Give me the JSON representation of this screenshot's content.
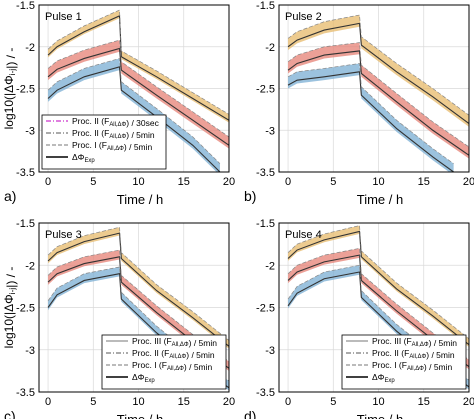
{
  "chart_data": [
    {
      "type": "line",
      "panel_letter": "a)",
      "inset_title": "Pulse 1",
      "xlabel": "Time / h",
      "ylabel": "log10(|ΔΦ_(i-j)|) / -",
      "xlim": [
        -1,
        20
      ],
      "ylim": [
        -3.5,
        -1.5
      ],
      "xticks": [
        "0",
        "5",
        "10",
        "15",
        "20"
      ],
      "yticks": [
        "-1.5",
        "-2",
        "-2.5",
        "-3",
        "-3.5"
      ],
      "grid": true,
      "legend_position": "bottom-left",
      "legend": [
        {
          "text": "Proc. II (F_All,ΔΦ) / 30sec",
          "style": "magenta-dashdot"
        },
        {
          "text": "Proc. II (F_All,ΔΦ) / 5min",
          "style": "gray-dashdot"
        },
        {
          "text": "Proc. I (F_All,ΔΦ) / 5min",
          "style": "gray-dashed"
        },
        {
          "text": "ΔΦ_Exp",
          "style": "black-solid"
        }
      ],
      "series": [
        {
          "values": [
            [
              0,
              -2.1
            ],
            [
              1,
              -2.0
            ],
            [
              4,
              -1.82
            ],
            [
              7.9,
              -1.63
            ],
            [
              8.1,
              -2.12
            ],
            [
              12,
              -2.36
            ],
            [
              16,
              -2.62
            ],
            [
              20,
              -2.88
            ]
          ],
          "band": 0.07,
          "color": "#e7b96a"
        },
        {
          "values": [
            [
              0,
              -2.36
            ],
            [
              1,
              -2.27
            ],
            [
              4,
              -2.14
            ],
            [
              7.9,
              -2.02
            ],
            [
              8.1,
              -2.28
            ],
            [
              12,
              -2.58
            ],
            [
              16,
              -2.88
            ],
            [
              20,
              -3.18
            ]
          ],
          "band": 0.1,
          "color": "#e58074"
        },
        {
          "values": [
            [
              0,
              -2.62
            ],
            [
              1,
              -2.52
            ],
            [
              4,
              -2.36
            ],
            [
              7.9,
              -2.24
            ],
            [
              8.1,
              -2.52
            ],
            [
              12,
              -2.84
            ],
            [
              16,
              -3.18
            ],
            [
              19,
              -3.5
            ]
          ],
          "band": 0.1,
          "color": "#79add3"
        }
      ]
    },
    {
      "type": "line",
      "panel_letter": "b)",
      "inset_title": "Pulse 2",
      "xlabel": "Time / h",
      "ylabel": "",
      "xlim": [
        -1,
        20
      ],
      "ylim": [
        -3.5,
        -1.5
      ],
      "xticks": [
        "0",
        "5",
        "10",
        "15",
        "20"
      ],
      "yticks": [
        "-1.5",
        "-2",
        "-2.5",
        "-3",
        "-3.5"
      ],
      "grid": true,
      "legend_position": "none",
      "legend": [],
      "series": [
        {
          "values": [
            [
              0,
              -2.0
            ],
            [
              1,
              -1.92
            ],
            [
              4,
              -1.8
            ],
            [
              7.9,
              -1.72
            ],
            [
              8.1,
              -1.98
            ],
            [
              12,
              -2.3
            ],
            [
              16,
              -2.6
            ],
            [
              20,
              -2.92
            ]
          ],
          "band": 0.1,
          "color": "#e7b96a"
        },
        {
          "values": [
            [
              0,
              -2.28
            ],
            [
              1,
              -2.2
            ],
            [
              4,
              -2.1
            ],
            [
              7.9,
              -2.05
            ],
            [
              8.1,
              -2.32
            ],
            [
              12,
              -2.66
            ],
            [
              16,
              -3.0
            ],
            [
              20,
              -3.3
            ]
          ],
          "band": 0.1,
          "color": "#e58074"
        },
        {
          "values": [
            [
              0,
              -2.46
            ],
            [
              1,
              -2.4
            ],
            [
              4,
              -2.36
            ],
            [
              7.9,
              -2.3
            ],
            [
              8.1,
              -2.58
            ],
            [
              12,
              -2.98
            ],
            [
              16,
              -3.32
            ],
            [
              18.3,
              -3.5
            ]
          ],
          "band": 0.1,
          "color": "#79add3"
        }
      ]
    },
    {
      "type": "line",
      "panel_letter": "c)",
      "inset_title": "Pulse 3",
      "xlabel": "Time / h",
      "ylabel": "log10(|ΔΦ_(i-j)|) / -",
      "xlim": [
        -1,
        20
      ],
      "ylim": [
        -3.5,
        -1.5
      ],
      "xticks": [
        "0",
        "5",
        "10",
        "15",
        "20"
      ],
      "yticks": [
        "-1.5",
        "-2",
        "-2.5",
        "-3",
        "-3.5"
      ],
      "grid": true,
      "legend_position": "bottom-right",
      "legend": [
        {
          "text": "Proc. III (F_All,ΔΦ) / 5min",
          "style": "gray-solid"
        },
        {
          "text": "Proc. II (F_All,ΔΦ) / 5min",
          "style": "gray-dashdot"
        },
        {
          "text": "Proc. I (F_All,ΔΦ) / 5min",
          "style": "gray-dashed"
        },
        {
          "text": "ΔΦ_Exp",
          "style": "black-solid"
        }
      ],
      "series": [
        {
          "values": [
            [
              0,
              -1.95
            ],
            [
              1,
              -1.85
            ],
            [
              4,
              -1.72
            ],
            [
              7.9,
              -1.62
            ],
            [
              8.1,
              -1.92
            ],
            [
              12,
              -2.3
            ],
            [
              16,
              -2.62
            ],
            [
              20,
              -2.96
            ]
          ],
          "band": 0.07,
          "color": "#e7b96a"
        },
        {
          "values": [
            [
              0,
              -2.2
            ],
            [
              1,
              -2.1
            ],
            [
              4,
              -1.98
            ],
            [
              7.9,
              -1.9
            ],
            [
              8.1,
              -2.2
            ],
            [
              12,
              -2.56
            ],
            [
              16,
              -2.9
            ],
            [
              20,
              -3.22
            ]
          ],
          "band": 0.08,
          "color": "#e58074"
        },
        {
          "values": [
            [
              0,
              -2.5
            ],
            [
              1,
              -2.35
            ],
            [
              4,
              -2.18
            ],
            [
              7.9,
              -2.1
            ],
            [
              8.1,
              -2.4
            ],
            [
              12,
              -2.8
            ],
            [
              16,
              -3.15
            ],
            [
              20,
              -3.45
            ]
          ],
          "band": 0.08,
          "color": "#79add3"
        }
      ]
    },
    {
      "type": "line",
      "panel_letter": "d)",
      "inset_title": "Pulse 4",
      "xlabel": "Time / h",
      "ylabel": "",
      "xlim": [
        -1,
        20
      ],
      "ylim": [
        -3.5,
        -1.5
      ],
      "xticks": [
        "0",
        "5",
        "10",
        "15",
        "20"
      ],
      "yticks": [
        "-1.5",
        "-2",
        "-2.5",
        "-3",
        "-3.5"
      ],
      "grid": true,
      "legend_position": "bottom-right",
      "legend": [
        {
          "text": "Proc. III (F_All,ΔΦ) / 5min",
          "style": "gray-solid"
        },
        {
          "text": "Proc. II (F_All,ΔΦ) / 5min",
          "style": "gray-dashdot"
        },
        {
          "text": "Proc. I (F_All,ΔΦ) / 5min",
          "style": "gray-dashed"
        },
        {
          "text": "ΔΦ_Exp",
          "style": "black-solid"
        }
      ],
      "series": [
        {
          "values": [
            [
              0,
              -1.92
            ],
            [
              1,
              -1.82
            ],
            [
              4,
              -1.7
            ],
            [
              7.9,
              -1.6
            ],
            [
              8.1,
              -1.9
            ],
            [
              12,
              -2.28
            ],
            [
              16,
              -2.6
            ],
            [
              20,
              -2.94
            ]
          ],
          "band": 0.07,
          "color": "#e7b96a"
        },
        {
          "values": [
            [
              0,
              -2.18
            ],
            [
              1,
              -2.08
            ],
            [
              4,
              -1.96
            ],
            [
              7.9,
              -1.88
            ],
            [
              8.1,
              -2.18
            ],
            [
              12,
              -2.54
            ],
            [
              16,
              -2.88
            ],
            [
              20,
              -3.2
            ]
          ],
          "band": 0.08,
          "color": "#e58074"
        },
        {
          "values": [
            [
              0,
              -2.48
            ],
            [
              1,
              -2.33
            ],
            [
              4,
              -2.16
            ],
            [
              7.9,
              -2.08
            ],
            [
              8.1,
              -2.38
            ],
            [
              12,
              -2.78
            ],
            [
              16,
              -3.12
            ],
            [
              20,
              -3.44
            ]
          ],
          "band": 0.08,
          "color": "#79add3"
        }
      ]
    }
  ]
}
